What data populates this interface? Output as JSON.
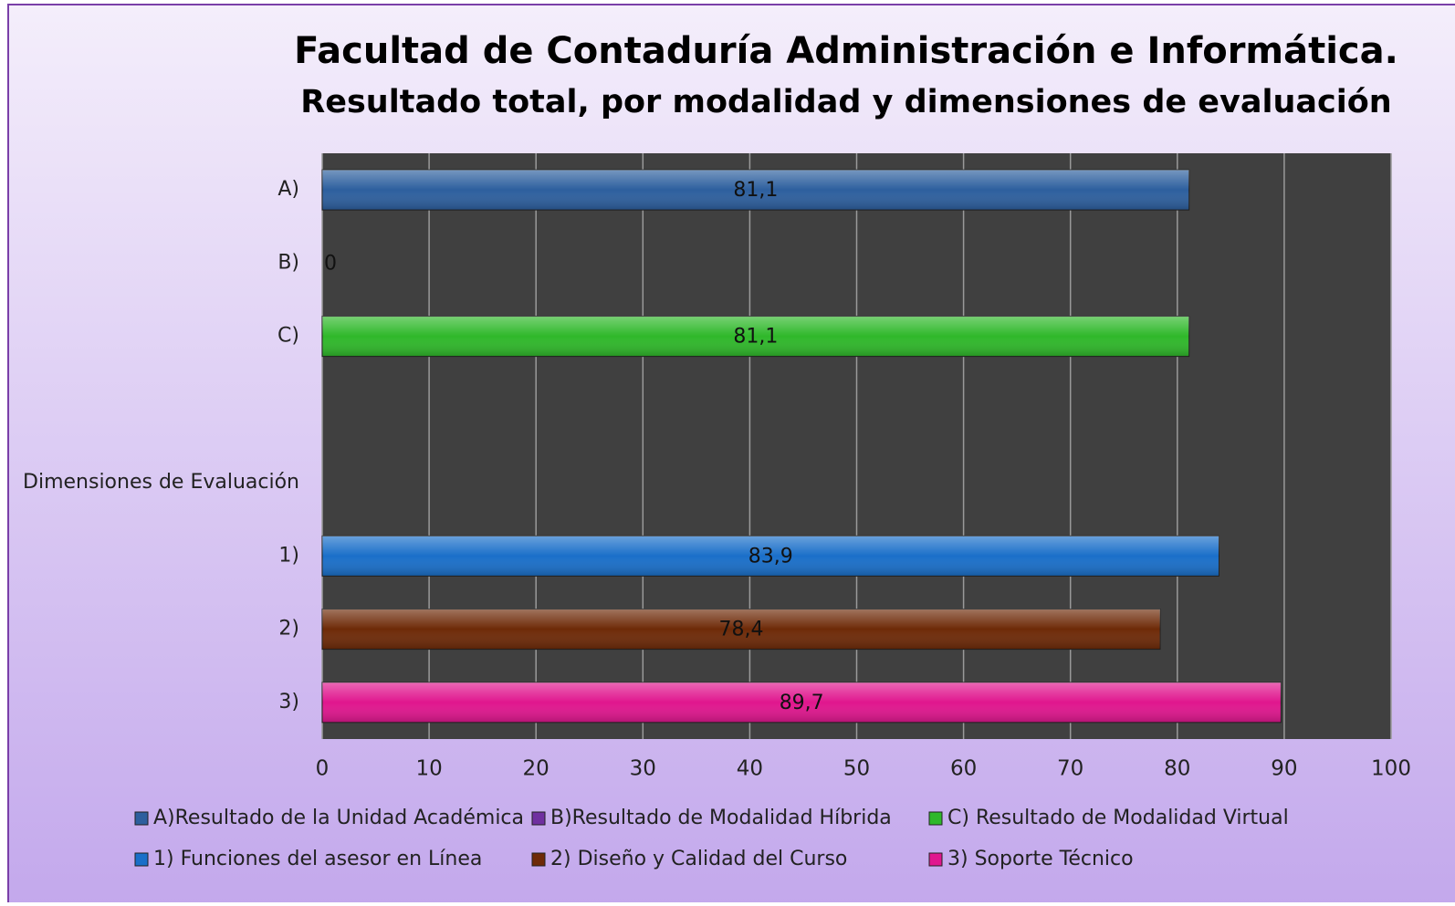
{
  "chart_data": {
    "type": "barh",
    "title": "Facultad de Contaduría Administración e Informática.",
    "subtitle": "Resultado total, por modalidad y dimensiones de evaluación",
    "categories": [
      "A)",
      "B)",
      "C)",
      null,
      "Dimensiones de Evaluación",
      "1)",
      "2)",
      "3)"
    ],
    "series": [
      {
        "name": "A)Resultado de la Unidad Académica",
        "color": "#2d5f9e",
        "values": [
          81.1,
          null,
          null,
          null,
          null,
          null,
          null,
          null
        ],
        "value_labels": [
          "81,1",
          null,
          null,
          null,
          null,
          null,
          null,
          null
        ]
      },
      {
        "name": "B)Resultado de Modalidad Híbrida",
        "color": "#7030a0",
        "values": [
          null,
          0,
          null,
          null,
          null,
          null,
          null,
          null
        ],
        "value_labels": [
          null,
          "0",
          null,
          null,
          null,
          null,
          null,
          null
        ]
      },
      {
        "name": "C) Resultado de Modalidad Virtual",
        "color": "#2fb82a",
        "values": [
          null,
          null,
          81.1,
          null,
          null,
          null,
          null,
          null
        ],
        "value_labels": [
          null,
          null,
          "81,1",
          null,
          null,
          null,
          null,
          null
        ]
      },
      {
        "name": "1) Funciones del asesor en Línea",
        "color": "#1a6fc9",
        "values": [
          null,
          null,
          null,
          null,
          null,
          83.9,
          null,
          null
        ],
        "value_labels": [
          null,
          null,
          null,
          null,
          null,
          "83,9",
          null,
          null
        ]
      },
      {
        "name": "2) Diseño y Calidad del Curso",
        "color": "#6e2a08",
        "values": [
          null,
          null,
          null,
          null,
          null,
          null,
          78.4,
          null
        ],
        "value_labels": [
          null,
          null,
          null,
          null,
          null,
          null,
          "78,4",
          null
        ]
      },
      {
        "name": "3) Soporte Técnico",
        "color": "#e0168e",
        "values": [
          null,
          null,
          null,
          null,
          null,
          null,
          null,
          89.7
        ],
        "value_labels": [
          null,
          null,
          null,
          null,
          null,
          null,
          null,
          "89,7"
        ]
      }
    ],
    "xlim": [
      0,
      100
    ],
    "xticks": [
      0,
      10,
      20,
      30,
      40,
      50,
      60,
      70,
      80,
      90,
      100
    ],
    "grid": true,
    "legend": "bottom"
  }
}
